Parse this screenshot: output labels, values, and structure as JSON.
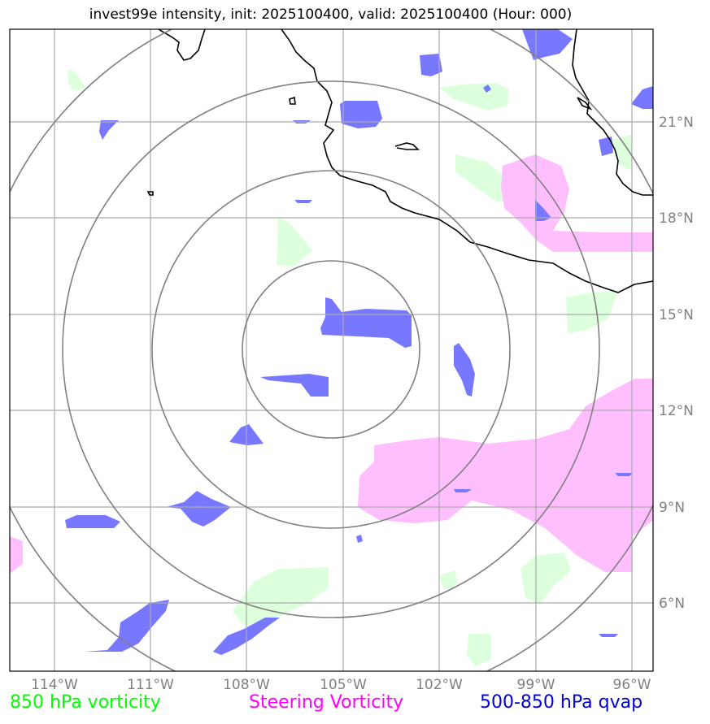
{
  "title": "invest99e intensity, init: 2025100400, valid: 2025100400 (Hour: 000)",
  "map": {
    "lon_range": [
      -115.8,
      -95.8
    ],
    "lat_range": [
      3.6,
      23.6
    ],
    "lon_ticks": [
      "114°W",
      "111°W",
      "108°W",
      "105°W",
      "102°W",
      "99°W",
      "96°W"
    ],
    "lat_ticks": [
      "21°N",
      "18°N",
      "15°N",
      "12°N",
      "9°N",
      "6°N"
    ],
    "storm_center": {
      "lon": -105.3,
      "lat": 14.0
    },
    "range_rings_count": 4
  },
  "legend": {
    "vorticity_850": {
      "label": "850 hPa vorticity",
      "color": "#00ff00"
    },
    "steering_vorticity": {
      "label": "Steering Vorticity",
      "color": "#ff00ff"
    },
    "qvap": {
      "label": "500-850 hPa qvap",
      "color": "#0000dd"
    }
  },
  "colors": {
    "green_fill": "#dcffdc",
    "magenta_fill": "#ffbfff",
    "blue_fill": "#7777ff",
    "grid": "#aaaaaa",
    "ring": "#808080",
    "tick_label": "#808080"
  }
}
